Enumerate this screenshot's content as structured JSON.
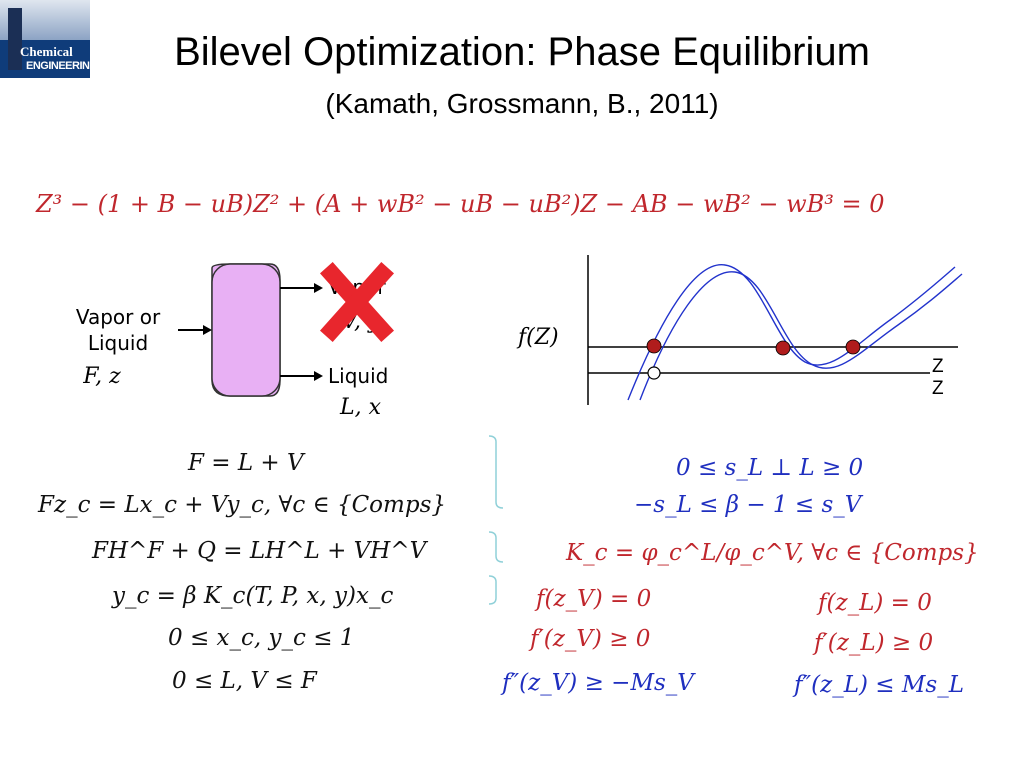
{
  "logo": {
    "line1": "Chemical",
    "line2": "ENGINEERING"
  },
  "slide": {
    "title": "Bilevel Optimization: Phase Equilibrium",
    "subtitle": "(Kamath, Grossmann, B., 2011)"
  },
  "cubic_equation": "Z³ − (1 + B − uB)Z² + (A + wB² − uB − uB²)Z − AB − wB² − wB³ = 0",
  "flash_diagram": {
    "feed_label_1": "Vapor or",
    "feed_label_2": "Liquid",
    "feed_vars": "F, z",
    "vapor_label": "Vapor",
    "vapor_vars": "V, y",
    "liquid_label": "Liquid",
    "liquid_vars": "L, x",
    "vessel_color": "#e8b0f4",
    "cross_color": "#e8262d"
  },
  "plot": {
    "ylabel": "f(Z)",
    "line_labels": [
      "Z",
      "Z"
    ],
    "point_color": "#b01c1c",
    "curve_color": "#2233cc"
  },
  "left_equations": [
    "F = L + V",
    "Fz_c = Lx_c + Vy_c,    ∀c ∈ {Comps}",
    "FH^F + Q = LH^L + VH^V",
    "y_c = β  K_c(T, P, x, y)x_c",
    "0 ≤ x_c, y_c ≤ 1",
    "0 ≤ L, V ≤ F"
  ],
  "right_equations": {
    "complementarity": "0 ≤ s_L ⊥ L ≥ 0",
    "beta_bounds": "−s_L ≤ β − 1 ≤ s_V",
    "k_value": "K_c = φ_c^L/φ_c^V,    ∀c ∈ {Comps}",
    "fzv": "f(z_V) = 0",
    "fzl": "f(z_L) = 0",
    "fpzv": "f′(z_V) ≥ 0",
    "fpzl": "f′(z_L) ≥ 0",
    "fppzv": "f″(z_V) ≥ −Ms_V",
    "fppzl": "f″(z_L) ≤ Ms_L"
  }
}
